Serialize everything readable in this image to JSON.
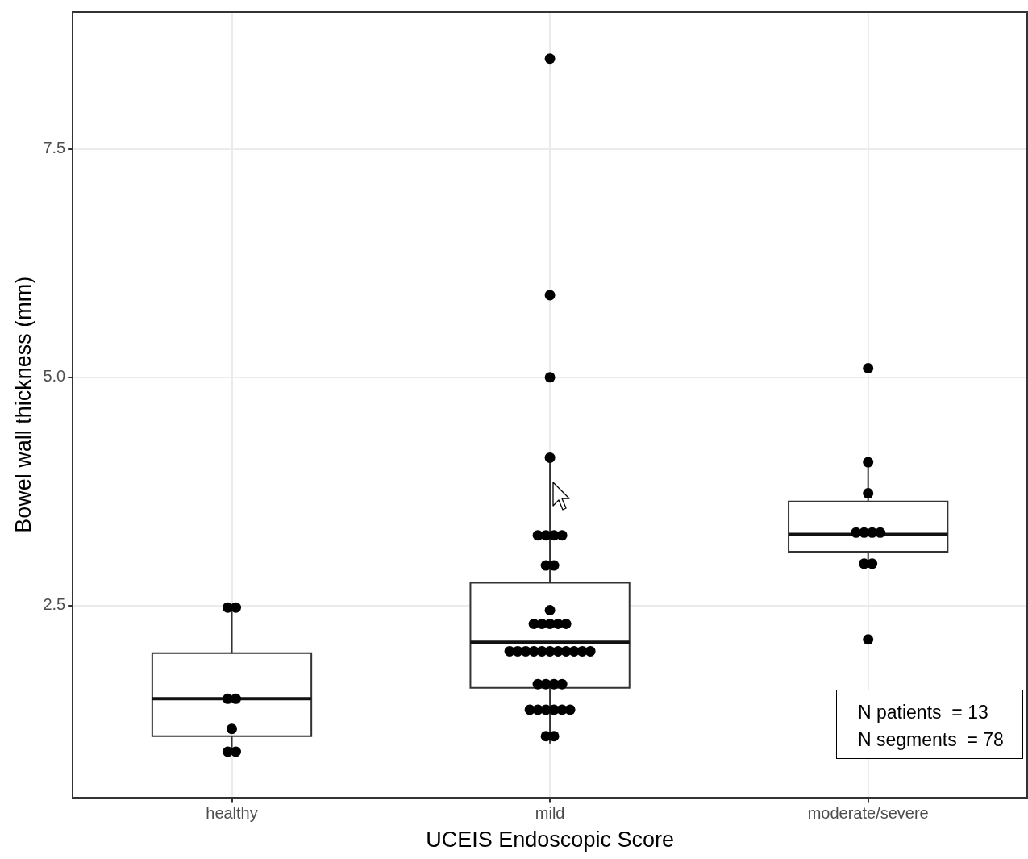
{
  "chart_data": {
    "type": "box",
    "xlabel": "UCEIS Endoscopic Score",
    "ylabel": "Bowel wall thickness (mm)",
    "categories": [
      "healthy",
      "mild",
      "moderate/severe"
    ],
    "boxes": [
      {
        "low": 0.9,
        "q1": 1.07,
        "median": 1.48,
        "q3": 1.98,
        "high": 2.48
      },
      {
        "low": 0.99,
        "q1": 1.6,
        "median": 2.1,
        "q3": 2.75,
        "high": 4.12
      },
      {
        "low": 2.95,
        "q1": 3.09,
        "median": 3.28,
        "q3": 3.64,
        "high": 4.07
      }
    ],
    "series": [
      {
        "type": "scatter",
        "color": "#000000",
        "x": [
          "healthy",
          "healthy",
          "healthy",
          "healthy",
          "healthy",
          "healthy",
          "healthy",
          "mild",
          "mild",
          "mild",
          "mild",
          "mild",
          "mild",
          "mild",
          "mild",
          "mild",
          "mild",
          "mild",
          "mild",
          "mild",
          "mild",
          "mild",
          "mild",
          "mild",
          "mild",
          "mild",
          "mild",
          "mild",
          "mild",
          "mild",
          "mild",
          "mild",
          "mild",
          "mild",
          "mild",
          "mild",
          "mild",
          "mild",
          "mild",
          "mild",
          "mild",
          "mild",
          "mild",
          "mild",
          "mild",
          "mild",
          "moderate/severe",
          "moderate/severe",
          "moderate/severe",
          "moderate/severe",
          "moderate/severe",
          "moderate/severe",
          "moderate/severe",
          "moderate/severe",
          "moderate/severe",
          "moderate/severe"
        ],
        "values": [
          2.48,
          2.48,
          1.48,
          1.48,
          1.15,
          0.9,
          0.9,
          8.49,
          5.9,
          5.0,
          4.12,
          3.27,
          3.27,
          3.27,
          3.27,
          2.94,
          2.94,
          2.45,
          2.3,
          2.3,
          2.3,
          2.3,
          2.3,
          2.0,
          2.0,
          2.0,
          2.0,
          2.0,
          2.0,
          2.0,
          2.0,
          2.0,
          2.0,
          2.0,
          1.64,
          1.64,
          1.64,
          1.64,
          1.36,
          1.36,
          1.36,
          1.36,
          1.36,
          1.36,
          1.07,
          1.07,
          5.1,
          4.07,
          3.73,
          3.3,
          3.3,
          3.3,
          3.3,
          2.96,
          2.96,
          2.13
        ]
      }
    ],
    "ylim": [
      0.4,
      9.0
    ],
    "yticks": [
      {
        "value": 2.5,
        "label": "2.5"
      },
      {
        "value": 5,
        "label": "5.0"
      },
      {
        "value": 7.5,
        "label": "7.5"
      }
    ],
    "grid": true,
    "annotations": [
      "N patients  = 13",
      "N segments  = 78"
    ]
  }
}
